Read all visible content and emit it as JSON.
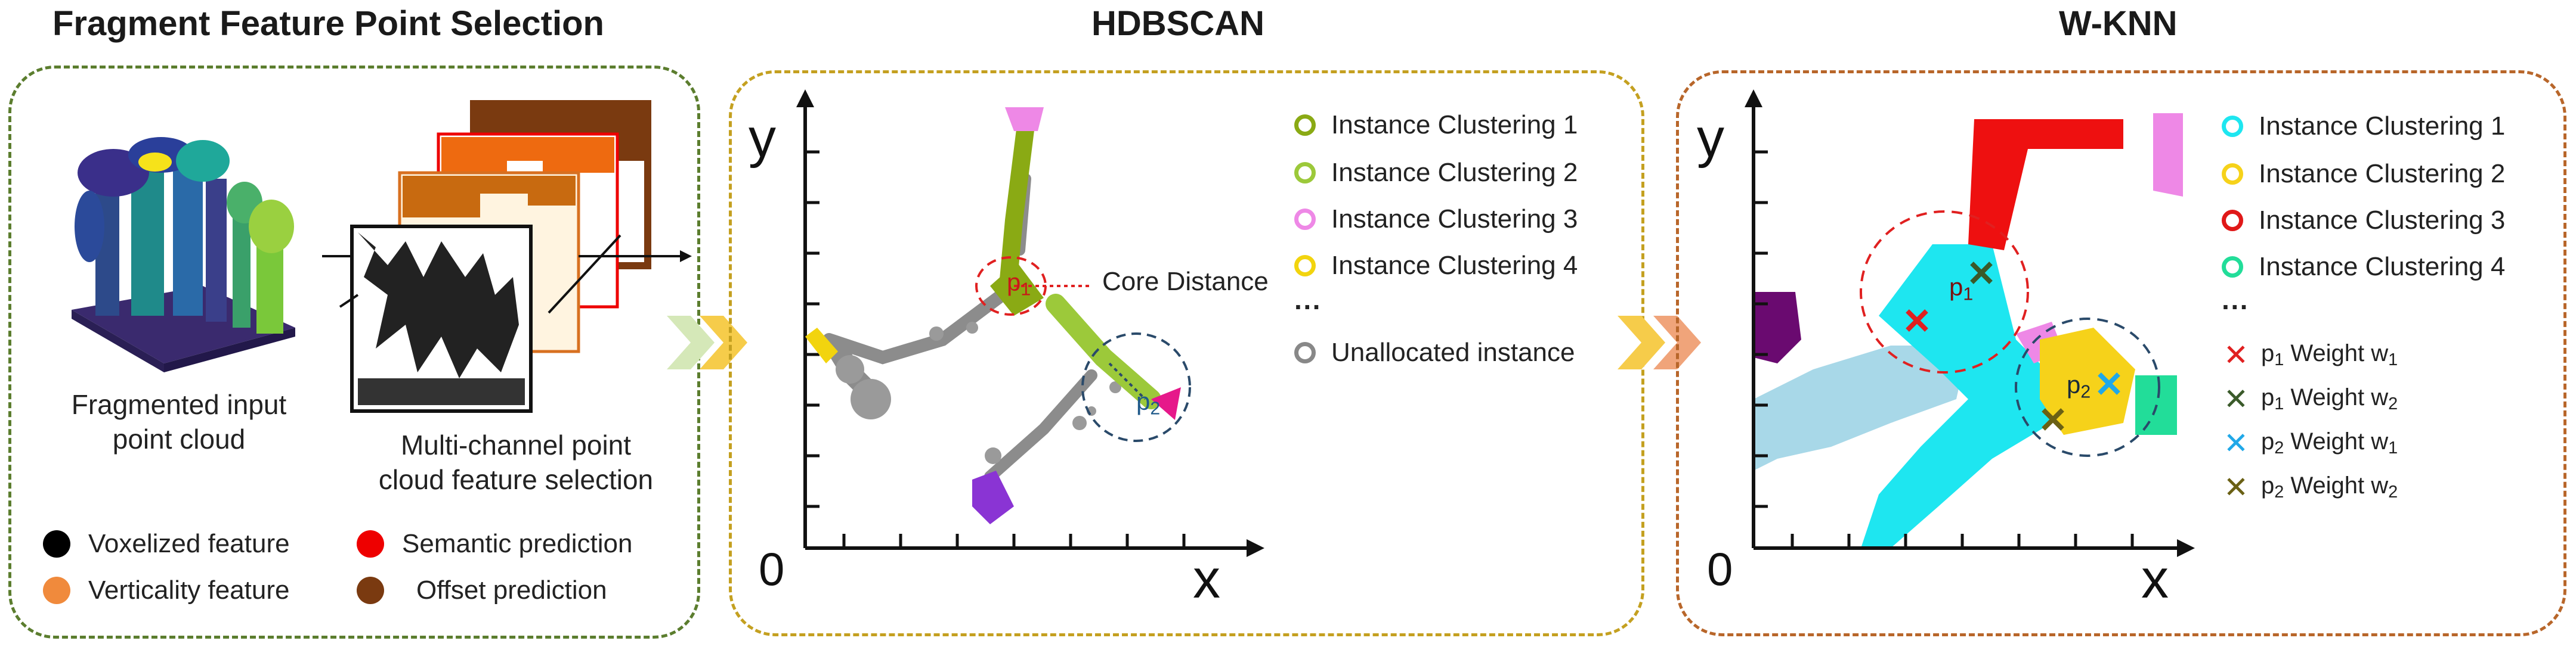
{
  "titles": {
    "panel1": "Fragment Feature Point Selection",
    "panel2": "HDBSCAN",
    "panel3": "W-KNN"
  },
  "panel1": {
    "input_caption_line1": "Fragmented input",
    "input_caption_line2": "point cloud",
    "feature_caption_line1": "Multi-channel point",
    "feature_caption_line2": "cloud feature selection",
    "legend": [
      {
        "label": "Voxelized feature",
        "color": "#000000"
      },
      {
        "label": "Semantic prediction",
        "color": "#ee0000"
      },
      {
        "label": "Verticality feature",
        "color": "#f08a3c"
      },
      {
        "label": "Offset prediction",
        "color": "#7a3a10"
      }
    ]
  },
  "panel2": {
    "axis_y": "y",
    "axis_x": "x",
    "origin": "0",
    "point_p": "p",
    "point_p_sub1": "1",
    "point_p_sub2": "2",
    "core_distance_label": "Core Distance",
    "legend": [
      {
        "label": "Instance Clustering 1",
        "color": "#8aaa14"
      },
      {
        "label": "Instance Clustering 2",
        "color": "#9cc93a"
      },
      {
        "label": "Instance Clustering 3",
        "color": "#ee88e6"
      },
      {
        "label": "Instance Clustering 4",
        "color": "#f2d40e"
      }
    ],
    "ellipsis": "···",
    "unallocated_label": "Unallocated instance",
    "unallocated_color": "#888888"
  },
  "panel3": {
    "axis_y": "y",
    "axis_x": "x",
    "origin": "0",
    "point_p": "p",
    "point_p_sub1": "1",
    "point_p_sub2": "2",
    "legend": [
      {
        "label": "Instance Clustering 1",
        "color": "#1ee6f0"
      },
      {
        "label": "Instance Clustering 2",
        "color": "#f6d21a"
      },
      {
        "label": "Instance Clustering 3",
        "color": "#e01818"
      },
      {
        "label": "Instance Clustering 4",
        "color": "#22dd99"
      }
    ],
    "ellipsis": "···",
    "weights": [
      {
        "p": "p",
        "sub": "1",
        "label": "Weight w",
        "wsub": "1",
        "color": "#e02020"
      },
      {
        "p": "p",
        "sub": "1",
        "label": "Weight w",
        "wsub": "2",
        "color": "#3a5a2a"
      },
      {
        "p": "p",
        "sub": "2",
        "label": "Weight w",
        "wsub": "1",
        "color": "#20a8e8"
      },
      {
        "p": "p",
        "sub": "2",
        "label": "Weight w",
        "wsub": "2",
        "color": "#6a6014"
      }
    ],
    "cross_glyph": "✕"
  },
  "colors": {
    "panel1_border": "#5b7d2e",
    "panel2_border": "#c4a020",
    "panel3_border": "#b8662a"
  }
}
